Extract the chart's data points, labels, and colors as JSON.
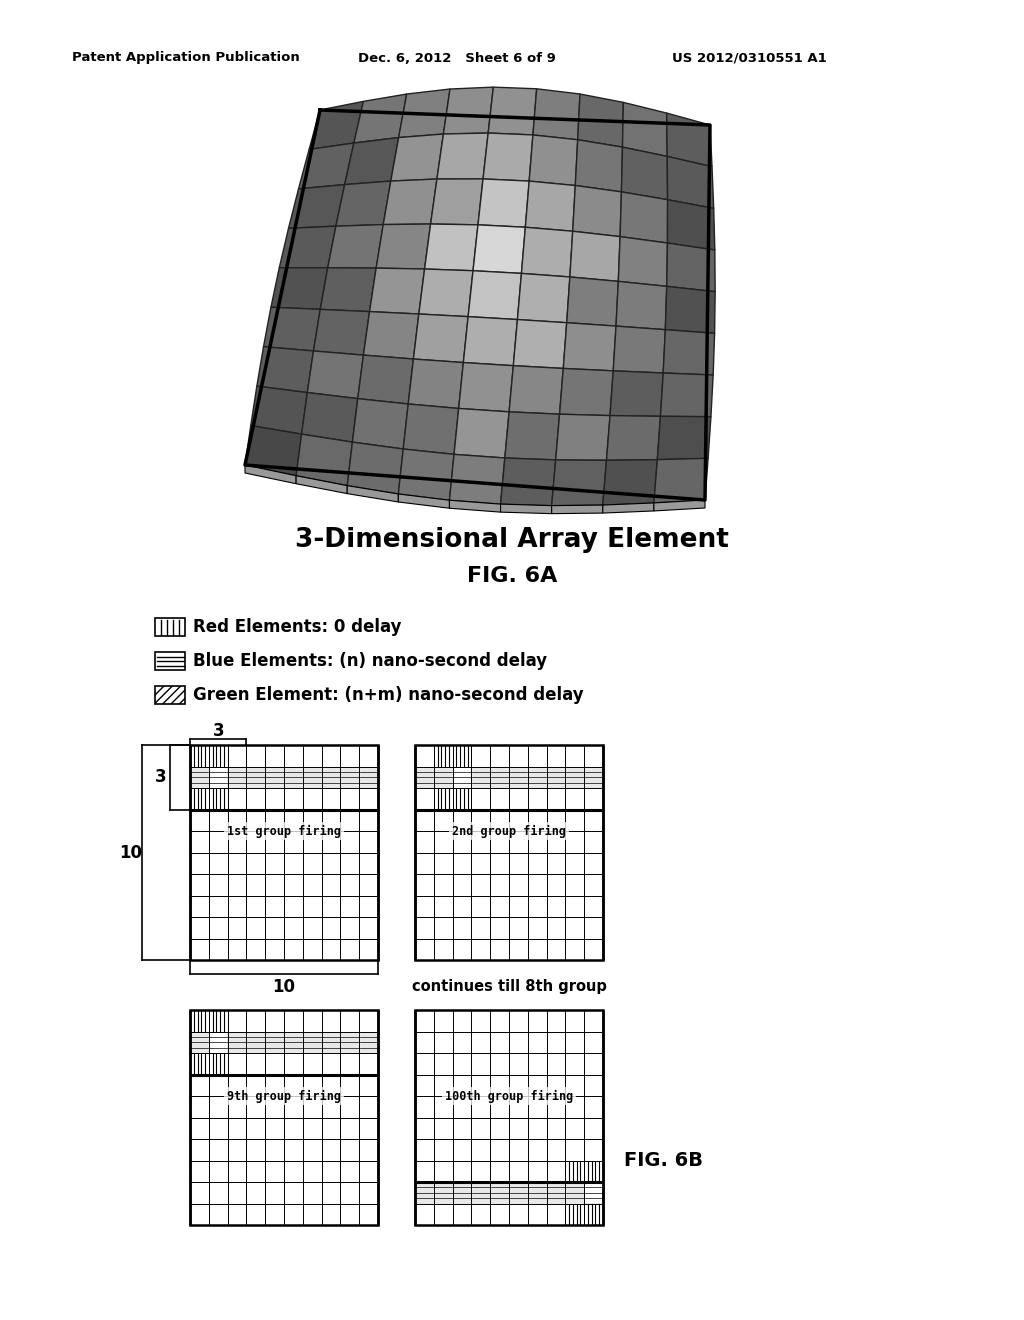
{
  "bg_color": "#ffffff",
  "header_left": "Patent Application Publication",
  "header_mid": "Dec. 6, 2012   Sheet 6 of 9",
  "header_right": "US 2012/0310551 A1",
  "title_3d": "3-Dimensional Array Element",
  "fig_label_6a": "FIG. 6A",
  "fig_label_6b": "FIG. 6B",
  "legend_items": [
    {
      "label": "Red Elements: 0 delay"
    },
    {
      "label": "Blue Elements: (n) nano-second delay"
    },
    {
      "label": "Green Element: (n+m) nano-second delay"
    }
  ],
  "grid_rows": 10,
  "grid_cols": 10,
  "group_labels": [
    "1st group firing",
    "2nd group firing",
    "9th group firing",
    "100th group firing"
  ],
  "continues_text": "continues till 8th group",
  "3d_n_rows": 9,
  "3d_n_cols": 9,
  "3d_tl": [
    310,
    510
  ],
  "3d_tr": [
    720,
    460
  ],
  "3d_bl": [
    250,
    165
  ],
  "3d_br": [
    700,
    155
  ]
}
